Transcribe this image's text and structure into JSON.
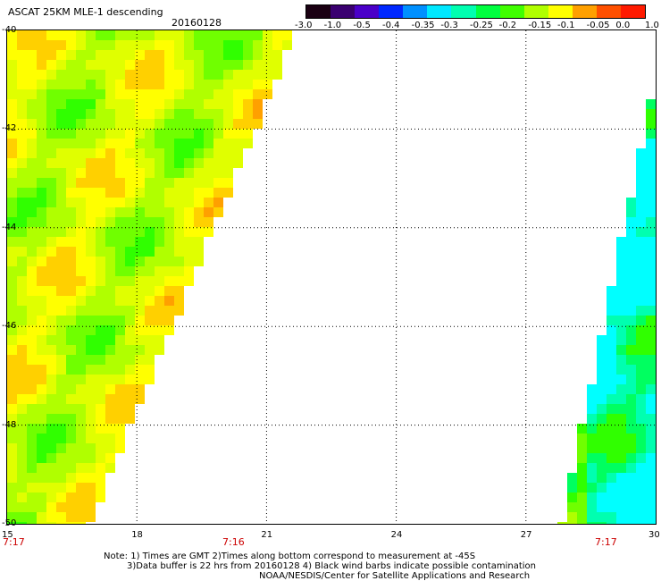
{
  "header": {
    "title": "ASCAT 25KM MLE-1 descending",
    "date": "20160128"
  },
  "colorbar": {
    "labels": [
      "-3.0",
      "-1.0",
      "-0.5",
      "-0.4",
      "-0.35",
      "-0.3",
      "-0.25",
      "-0.2",
      "-0.15",
      "-0.1",
      "-0.05",
      "0.0",
      "1.0"
    ],
    "colors": [
      "#1a0012",
      "#3a0070",
      "#4a00c8",
      "#0028ff",
      "#0090ff",
      "#00e8ff",
      "#00ffb0",
      "#00ff40",
      "#40ff00",
      "#b0ff00",
      "#ffff00",
      "#ffa000",
      "#ff5000",
      "#ff1a00"
    ]
  },
  "map": {
    "lon_ticks": [
      "15",
      "18",
      "21",
      "24",
      "27",
      "30"
    ],
    "lat_ticks": [
      "-40",
      "-42",
      "-44",
      "-46",
      "-48",
      "-50"
    ],
    "lon_range": [
      15,
      30
    ],
    "lat_range": [
      -50,
      -40
    ],
    "grid": true
  },
  "time_labels": [
    "7:17",
    "7:16",
    "7:17"
  ],
  "notes": {
    "line1": "Note: 1) Times are GMT 2)Times along bottom correspond to measurement at -45S",
    "line2": "3)Data buffer is 22 hrs from 20160128 4) Black wind barbs indicate possible contamination",
    "line3": "NOAA/NESDIS/Center for Satellite Applications and Research"
  }
}
